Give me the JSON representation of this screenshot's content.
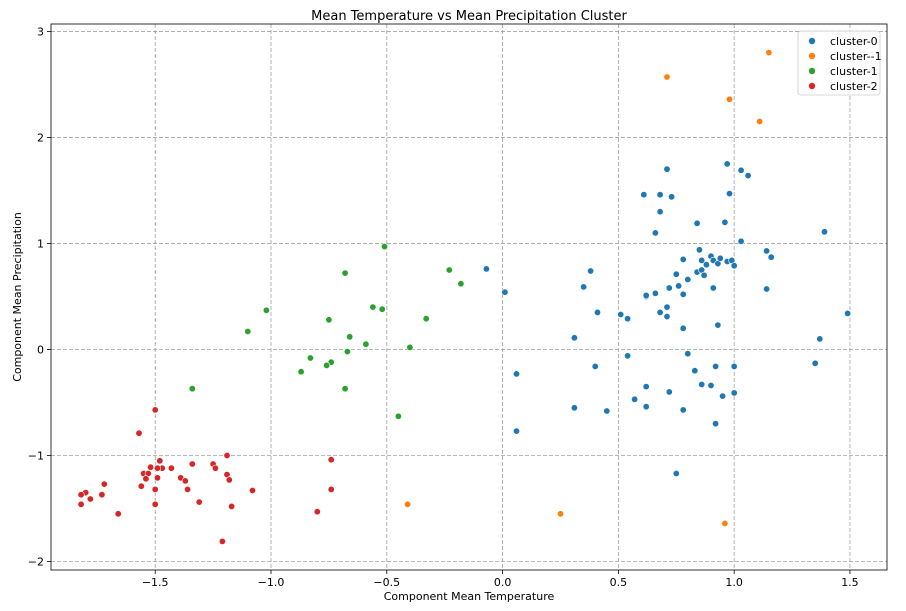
{
  "chart_data": {
    "type": "scatter",
    "title": "Mean Temperature vs Mean Precipitation Cluster",
    "xlabel": "Component Mean Temperature",
    "ylabel": "Component Mean Precipitation",
    "xlim": [
      -1.95,
      1.66
    ],
    "ylim": [
      -2.08,
      3.07
    ],
    "x_ticks": [
      -1.5,
      -1.0,
      -0.5,
      0.0,
      0.5,
      1.0,
      1.5
    ],
    "x_tick_labels": [
      "−1.5",
      "−1.0",
      "−0.5",
      "0.0",
      "0.5",
      "1.0",
      "1.5"
    ],
    "y_ticks": [
      -2,
      -1,
      0,
      1,
      2,
      3
    ],
    "y_tick_labels": [
      "−2",
      "−1",
      "0",
      "1",
      "2",
      "3"
    ],
    "grid": true,
    "legend_position": "top-right",
    "series": [
      {
        "name": "cluster-0",
        "color": "#1f77b4",
        "points": [
          [
            0.61,
            1.46
          ],
          [
            0.68,
            1.46
          ],
          [
            0.71,
            1.7
          ],
          [
            0.73,
            1.44
          ],
          [
            0.68,
            1.3
          ],
          [
            0.84,
            1.19
          ],
          [
            0.97,
            1.75
          ],
          [
            0.98,
            1.47
          ],
          [
            1.03,
            1.69
          ],
          [
            1.06,
            1.64
          ],
          [
            0.96,
            1.2
          ],
          [
            0.66,
            1.1
          ],
          [
            1.03,
            1.02
          ],
          [
            1.14,
            0.93
          ],
          [
            1.16,
            0.87
          ],
          [
            1.39,
            1.11
          ],
          [
            0.85,
            0.94
          ],
          [
            0.86,
            0.84
          ],
          [
            0.88,
            0.8
          ],
          [
            0.9,
            0.88
          ],
          [
            0.91,
            0.84
          ],
          [
            0.93,
            0.81
          ],
          [
            0.94,
            0.86
          ],
          [
            0.97,
            0.83
          ],
          [
            0.99,
            0.84
          ],
          [
            1.0,
            0.79
          ],
          [
            0.78,
            0.85
          ],
          [
            0.75,
            0.71
          ],
          [
            0.84,
            0.73
          ],
          [
            0.86,
            0.75
          ],
          [
            0.87,
            0.7
          ],
          [
            0.8,
            0.66
          ],
          [
            0.76,
            0.6
          ],
          [
            0.72,
            0.58
          ],
          [
            0.66,
            0.53
          ],
          [
            0.62,
            0.5
          ],
          [
            0.62,
            0.51
          ],
          [
            0.71,
            0.4
          ],
          [
            0.68,
            0.35
          ],
          [
            0.71,
            0.31
          ],
          [
            0.78,
            0.52
          ],
          [
            0.91,
            0.58
          ],
          [
            1.14,
            0.57
          ],
          [
            0.93,
            0.23
          ],
          [
            0.78,
            0.2
          ],
          [
            1.49,
            0.34
          ],
          [
            1.37,
            0.1
          ],
          [
            1.35,
            -0.13
          ],
          [
            0.38,
            0.74
          ],
          [
            0.35,
            0.59
          ],
          [
            0.41,
            0.35
          ],
          [
            0.51,
            0.33
          ],
          [
            0.54,
            0.29
          ],
          [
            -0.07,
            0.76
          ],
          [
            0.01,
            0.54
          ],
          [
            0.31,
            0.11
          ],
          [
            0.4,
            -0.16
          ],
          [
            0.54,
            -0.06
          ],
          [
            0.8,
            -0.04
          ],
          [
            0.83,
            -0.2
          ],
          [
            0.92,
            -0.16
          ],
          [
            1.0,
            -0.16
          ],
          [
            0.62,
            -0.35
          ],
          [
            0.72,
            -0.4
          ],
          [
            0.86,
            -0.33
          ],
          [
            0.9,
            -0.34
          ],
          [
            0.95,
            -0.44
          ],
          [
            1.0,
            -0.41
          ],
          [
            0.57,
            -0.47
          ],
          [
            0.62,
            -0.54
          ],
          [
            0.78,
            -0.57
          ],
          [
            0.45,
            -0.58
          ],
          [
            0.31,
            -0.55
          ],
          [
            0.06,
            -0.23
          ],
          [
            0.92,
            -0.7
          ],
          [
            0.06,
            -0.77
          ],
          [
            0.75,
            -1.17
          ]
        ]
      },
      {
        "name": "cluster--1",
        "color": "#ff7f0e",
        "points": [
          [
            0.71,
            2.57
          ],
          [
            1.15,
            2.8
          ],
          [
            0.98,
            2.36
          ],
          [
            1.11,
            2.15
          ],
          [
            -0.41,
            -1.46
          ],
          [
            0.25,
            -1.55
          ],
          [
            0.96,
            -1.64
          ]
        ]
      },
      {
        "name": "cluster-1",
        "color": "#2ca02c",
        "points": [
          [
            -0.51,
            0.97
          ],
          [
            -0.68,
            0.72
          ],
          [
            -0.23,
            0.75
          ],
          [
            -0.18,
            0.62
          ],
          [
            -1.02,
            0.37
          ],
          [
            -0.56,
            0.4
          ],
          [
            -0.52,
            0.38
          ],
          [
            -0.33,
            0.29
          ],
          [
            -0.75,
            0.28
          ],
          [
            -1.1,
            0.17
          ],
          [
            -0.66,
            0.12
          ],
          [
            -0.59,
            0.05
          ],
          [
            -0.4,
            0.02
          ],
          [
            -0.67,
            -0.02
          ],
          [
            -0.83,
            -0.08
          ],
          [
            -0.74,
            -0.12
          ],
          [
            -0.76,
            -0.15
          ],
          [
            -0.87,
            -0.21
          ],
          [
            -1.34,
            -0.37
          ],
          [
            -0.68,
            -0.37
          ],
          [
            -0.45,
            -0.63
          ]
        ]
      },
      {
        "name": "cluster-2",
        "color": "#d62728",
        "points": [
          [
            -1.5,
            -0.57
          ],
          [
            -1.57,
            -0.79
          ],
          [
            -1.19,
            -1.0
          ],
          [
            -1.48,
            -1.05
          ],
          [
            -1.34,
            -1.08
          ],
          [
            -1.25,
            -1.08
          ],
          [
            -1.52,
            -1.11
          ],
          [
            -1.47,
            -1.12
          ],
          [
            -1.43,
            -1.12
          ],
          [
            -1.49,
            -1.12
          ],
          [
            -1.24,
            -1.12
          ],
          [
            -1.55,
            -1.17
          ],
          [
            -1.53,
            -1.17
          ],
          [
            -1.19,
            -1.18
          ],
          [
            -1.39,
            -1.21
          ],
          [
            -1.49,
            -1.21
          ],
          [
            -1.54,
            -1.22
          ],
          [
            -1.37,
            -1.24
          ],
          [
            -1.18,
            -1.23
          ],
          [
            -1.72,
            -1.27
          ],
          [
            -1.56,
            -1.29
          ],
          [
            -1.36,
            -1.32
          ],
          [
            -1.5,
            -1.32
          ],
          [
            -1.8,
            -1.35
          ],
          [
            -1.08,
            -1.33
          ],
          [
            -1.73,
            -1.37
          ],
          [
            -1.82,
            -1.37
          ],
          [
            -1.78,
            -1.41
          ],
          [
            -1.31,
            -1.44
          ],
          [
            -1.5,
            -1.46
          ],
          [
            -1.17,
            -1.48
          ],
          [
            -1.82,
            -1.46
          ],
          [
            -1.66,
            -1.55
          ],
          [
            -1.21,
            -1.81
          ],
          [
            -0.74,
            -1.04
          ],
          [
            -0.74,
            -1.32
          ],
          [
            -0.8,
            -1.53
          ]
        ]
      }
    ]
  }
}
